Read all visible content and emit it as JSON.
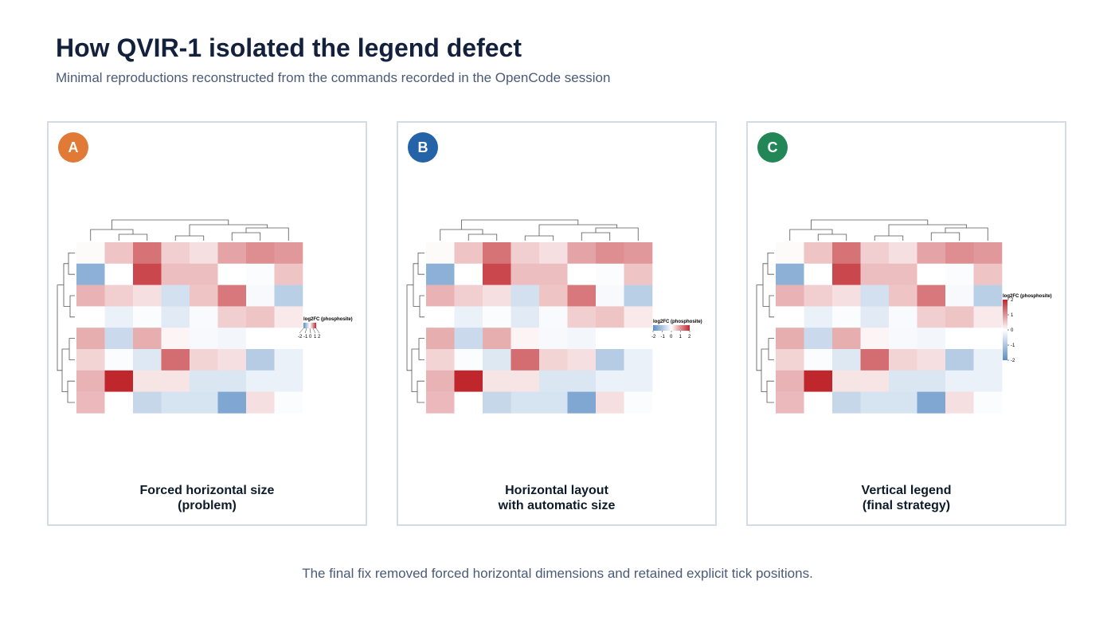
{
  "header": {
    "title": "How QVIR-1 isolated the legend defect",
    "subtitle": "Minimal reproductions reconstructed from the commands recorded in the OpenCode session"
  },
  "palette": {
    "negative": "#5b8ec4",
    "neutral": "#ffffff",
    "positive": "#c0272d",
    "panel_border": "#d3dce6",
    "dendrogram": "#555555"
  },
  "heatmap_values": [
    [
      0.05,
      0.55,
      1.3,
      0.45,
      0.3,
      0.85,
      1.05,
      0.95
    ],
    [
      -1.4,
      0.0,
      1.7,
      0.6,
      0.6,
      0.0,
      -0.05,
      0.55
    ],
    [
      0.7,
      0.45,
      0.3,
      -0.55,
      0.55,
      1.25,
      -0.1,
      -0.85
    ],
    [
      0.0,
      -0.25,
      -0.05,
      -0.35,
      -0.08,
      0.45,
      0.55,
      0.2
    ],
    [
      0.75,
      -0.65,
      0.75,
      0.1,
      -0.1,
      -0.15,
      0.0,
      0.0
    ],
    [
      0.4,
      -0.05,
      -0.4,
      1.35,
      0.4,
      0.3,
      -0.9,
      -0.25
    ],
    [
      0.7,
      2.0,
      0.25,
      0.25,
      -0.45,
      -0.45,
      -0.25,
      -0.25
    ],
    [
      0.65,
      0.0,
      -0.7,
      -0.5,
      -0.5,
      -1.55,
      0.3,
      -0.05
    ]
  ],
  "panels": [
    {
      "badge": "A",
      "badge_color": "#e07a36",
      "caption_line1": "Forced horizontal size",
      "caption_line2": "(problem)",
      "legend_orientation": "horizontal-forced",
      "legend_title": "log2FC (phosphosite)",
      "legend_ticks": [
        "-2",
        "-1",
        "0",
        "1",
        "2"
      ]
    },
    {
      "badge": "B",
      "badge_color": "#2563a8",
      "caption_line1": "Horizontal layout",
      "caption_line2": "with automatic size",
      "legend_orientation": "horizontal",
      "legend_title": "log2FC (phosphosite)",
      "legend_ticks": [
        "-2",
        "-1",
        "0",
        "1",
        "2"
      ]
    },
    {
      "badge": "C",
      "badge_color": "#238657",
      "caption_line1": "Vertical legend",
      "caption_line2": "(final strategy)",
      "legend_orientation": "vertical",
      "legend_title": "log2FC (phosphosite)",
      "legend_ticks": [
        "2",
        "1",
        "0",
        "-1",
        "-2"
      ]
    }
  ],
  "footer": {
    "text": "The final fix removed forced horizontal dimensions and retained explicit tick positions."
  }
}
